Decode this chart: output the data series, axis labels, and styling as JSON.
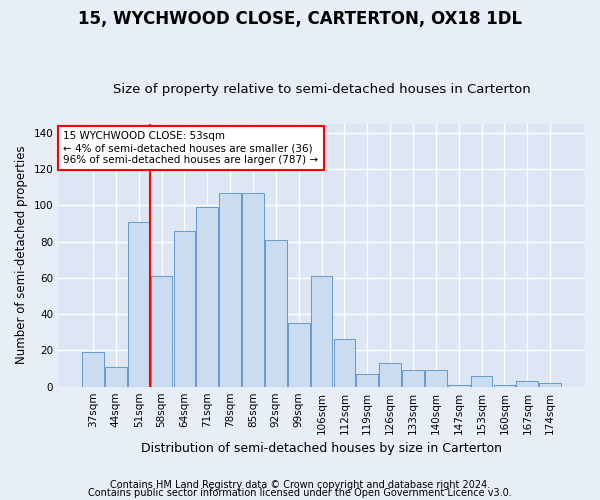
{
  "title": "15, WYCHWOOD CLOSE, CARTERTON, OX18 1DL",
  "subtitle": "Size of property relative to semi-detached houses in Carterton",
  "xlabel": "Distribution of semi-detached houses by size in Carterton",
  "ylabel": "Number of semi-detached properties",
  "categories": [
    "37sqm",
    "44sqm",
    "51sqm",
    "58sqm",
    "64sqm",
    "71sqm",
    "78sqm",
    "85sqm",
    "92sqm",
    "99sqm",
    "106sqm",
    "112sqm",
    "119sqm",
    "126sqm",
    "133sqm",
    "140sqm",
    "147sqm",
    "153sqm",
    "160sqm",
    "167sqm",
    "174sqm"
  ],
  "values": [
    19,
    11,
    91,
    61,
    86,
    99,
    107,
    107,
    81,
    35,
    61,
    26,
    7,
    13,
    9,
    9,
    1,
    6,
    1,
    3,
    2
  ],
  "bar_color": "#c9dcf0",
  "bar_edge_color": "#6699cc",
  "red_line_index": 2,
  "annotation_title": "15 WYCHWOOD CLOSE: 53sqm",
  "annotation_line1": "← 4% of semi-detached houses are smaller (36)",
  "annotation_line2": "96% of semi-detached houses are larger (787) →",
  "footnote1": "Contains HM Land Registry data © Crown copyright and database right 2024.",
  "footnote2": "Contains public sector information licensed under the Open Government Licence v3.0.",
  "ylim": [
    0,
    145
  ],
  "yticks": [
    0,
    20,
    40,
    60,
    80,
    100,
    120,
    140
  ],
  "bg_color": "#e8eef8",
  "plot_bg_color": "#dce6f5",
  "grid_color": "#ffffff",
  "title_fontsize": 12,
  "subtitle_fontsize": 9.5,
  "axis_label_fontsize": 8.5,
  "tick_fontsize": 7.5,
  "footnote_fontsize": 7
}
